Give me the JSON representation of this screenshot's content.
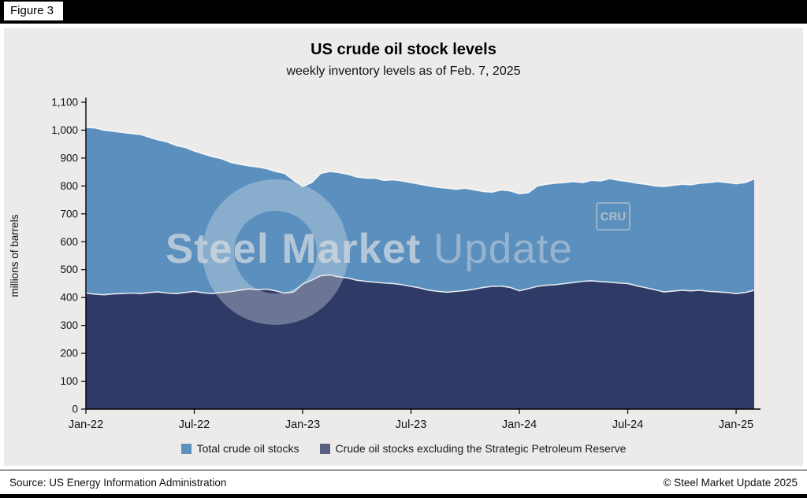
{
  "figure_label": "Figure 3",
  "header": {
    "title": "US crude oil stock levels",
    "subtitle": "weekly inventory levels as of Feb. 7, 2025"
  },
  "ylabel": "millions of barrels",
  "watermark": {
    "brand_bold": "Steel Market",
    "brand_light": "Update",
    "logo": "CRU"
  },
  "legend": [
    {
      "label": "Total crude oil stocks",
      "swatch": "#5B8FBE"
    },
    {
      "label": "Crude oil stocks excluding the Strategic Petroleum Reserve",
      "swatch": "#5A5F82"
    }
  ],
  "footer": {
    "source": "Source: US Energy Information Administration",
    "copyright": "© Steel Market Update 2025"
  },
  "chart_data": {
    "type": "area",
    "title": "US crude oil stock levels",
    "subtitle": "weekly inventory levels as of Feb. 7, 2025",
    "ylabel": "millions of barrels",
    "ylim": [
      0,
      1100
    ],
    "y_ticks": [
      0,
      100,
      200,
      300,
      400,
      500,
      600,
      700,
      800,
      900,
      1000,
      1100
    ],
    "y_tick_labels": [
      "0",
      "100",
      "200",
      "300",
      "400",
      "500",
      "600",
      "700",
      "800",
      "900",
      "1,000",
      "1,100"
    ],
    "x_ticks": [
      "Jan-22",
      "Jul-22",
      "Jan-23",
      "Jul-23",
      "Jan-24",
      "Jul-24",
      "Jan-25"
    ],
    "x_tick_indices": [
      0,
      12,
      24,
      36,
      48,
      60,
      72
    ],
    "x_range": [
      "Jan-22",
      "Feb. 7, 2025"
    ],
    "sampling": "biweekly estimates read from figure, millions of barrels",
    "grid": false,
    "legend_position": "bottom",
    "series": [
      {
        "name": "Total crude oil stocks",
        "name_slug": "total-crude-oil-stocks",
        "color": "#5B8FBE",
        "values": [
          1010,
          1008,
          1000,
          996,
          992,
          988,
          985,
          975,
          965,
          958,
          945,
          938,
          925,
          915,
          905,
          898,
          885,
          878,
          872,
          868,
          862,
          852,
          845,
          820,
          798,
          812,
          845,
          852,
          848,
          842,
          832,
          828,
          828,
          820,
          822,
          818,
          812,
          806,
          800,
          795,
          792,
          788,
          792,
          786,
          780,
          778,
          786,
          782,
          772,
          776,
          800,
          806,
          810,
          812,
          816,
          812,
          820,
          818,
          826,
          820,
          816,
          810,
          806,
          800,
          798,
          802,
          806,
          804,
          810,
          812,
          816,
          812,
          808,
          812,
          825
        ]
      },
      {
        "name": "Crude oil stocks excluding the Strategic Petroleum Reserve",
        "name_slug": "crude-stocks-ex-spr",
        "color": "#2F3A66",
        "values": [
          416,
          412,
          410,
          413,
          414,
          416,
          414,
          418,
          420,
          416,
          414,
          418,
          422,
          417,
          414,
          418,
          421,
          426,
          431,
          428,
          430,
          424,
          416,
          420,
          448,
          462,
          478,
          481,
          474,
          470,
          462,
          458,
          455,
          452,
          450,
          446,
          440,
          434,
          426,
          422,
          419,
          422,
          425,
          430,
          436,
          440,
          441,
          436,
          424,
          432,
          440,
          444,
          446,
          450,
          454,
          458,
          460,
          457,
          455,
          452,
          450,
          442,
          435,
          428,
          420,
          423,
          426,
          424,
          426,
          422,
          420,
          418,
          414,
          418,
          426
        ]
      }
    ]
  }
}
